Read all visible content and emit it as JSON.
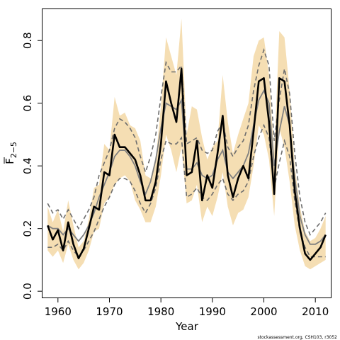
{
  "chart_data": {
    "type": "line",
    "xlabel": "Year",
    "ylabel": "F",
    "ylabel_subscript": "2−5",
    "xlim": [
      1957,
      2013
    ],
    "ylim": [
      -0.02,
      0.9
    ],
    "xticks": [
      1960,
      1970,
      1980,
      1990,
      2000,
      2010
    ],
    "yticks": [
      0.0,
      0.2,
      0.4,
      0.6,
      0.8
    ],
    "ytick_labels": [
      "0.0",
      "0.2",
      "0.4",
      "0.6",
      "0.8"
    ],
    "grid": false,
    "legend": "none",
    "x": [
      1958,
      1959,
      1960,
      1961,
      1962,
      1963,
      1964,
      1965,
      1966,
      1967,
      1968,
      1969,
      1970,
      1971,
      1972,
      1973,
      1974,
      1975,
      1976,
      1977,
      1978,
      1979,
      1980,
      1981,
      1982,
      1983,
      1984,
      1985,
      1986,
      1987,
      1988,
      1989,
      1990,
      1991,
      1992,
      1993,
      1994,
      1995,
      1996,
      1997,
      1998,
      1999,
      2000,
      2001,
      2002,
      2003,
      2004,
      2005,
      2006,
      2007,
      2008,
      2009,
      2010,
      2011,
      2012
    ],
    "series": [
      {
        "role": "band",
        "lower": [
          0.13,
          0.11,
          0.13,
          0.09,
          0.15,
          0.1,
          0.07,
          0.09,
          0.13,
          0.19,
          0.2,
          0.28,
          0.3,
          0.34,
          0.36,
          0.37,
          0.35,
          0.29,
          0.26,
          0.22,
          0.22,
          0.27,
          0.37,
          0.5,
          0.45,
          0.38,
          0.46,
          0.28,
          0.29,
          0.34,
          0.22,
          0.27,
          0.24,
          0.3,
          0.38,
          0.27,
          0.21,
          0.25,
          0.26,
          0.3,
          0.4,
          0.53,
          0.5,
          0.42,
          0.24,
          0.52,
          0.46,
          0.35,
          0.21,
          0.13,
          0.08,
          0.07,
          0.08,
          0.09,
          0.1
        ],
        "upper": [
          0.27,
          0.22,
          0.26,
          0.19,
          0.29,
          0.21,
          0.14,
          0.16,
          0.23,
          0.33,
          0.34,
          0.47,
          0.45,
          0.62,
          0.56,
          0.57,
          0.53,
          0.52,
          0.48,
          0.37,
          0.36,
          0.42,
          0.59,
          0.81,
          0.75,
          0.69,
          0.87,
          0.5,
          0.59,
          0.58,
          0.49,
          0.42,
          0.46,
          0.48,
          0.69,
          0.54,
          0.44,
          0.5,
          0.55,
          0.6,
          0.75,
          0.8,
          0.81,
          0.69,
          0.44,
          0.83,
          0.81,
          0.64,
          0.4,
          0.27,
          0.19,
          0.16,
          0.17,
          0.2,
          0.24
        ]
      },
      {
        "role": "dashed-upper",
        "values": [
          0.28,
          0.25,
          0.26,
          0.23,
          0.26,
          0.23,
          0.2,
          0.23,
          0.26,
          0.3,
          0.37,
          0.41,
          0.45,
          0.52,
          0.55,
          0.54,
          0.52,
          0.49,
          0.43,
          0.38,
          0.43,
          0.5,
          0.62,
          0.73,
          0.7,
          0.7,
          0.72,
          0.47,
          0.48,
          0.49,
          0.45,
          0.44,
          0.45,
          0.51,
          0.54,
          0.46,
          0.43,
          0.46,
          0.48,
          0.53,
          0.64,
          0.72,
          0.77,
          0.72,
          0.48,
          0.61,
          0.71,
          0.63,
          0.44,
          0.3,
          0.22,
          0.18,
          0.2,
          0.22,
          0.25
        ]
      },
      {
        "role": "dashed-lower",
        "values": [
          0.14,
          0.14,
          0.15,
          0.13,
          0.16,
          0.13,
          0.11,
          0.13,
          0.16,
          0.19,
          0.23,
          0.27,
          0.3,
          0.34,
          0.36,
          0.36,
          0.35,
          0.32,
          0.28,
          0.25,
          0.28,
          0.33,
          0.42,
          0.48,
          0.47,
          0.47,
          0.49,
          0.3,
          0.31,
          0.33,
          0.3,
          0.29,
          0.31,
          0.34,
          0.36,
          0.31,
          0.29,
          0.31,
          0.32,
          0.35,
          0.43,
          0.49,
          0.53,
          0.49,
          0.33,
          0.41,
          0.48,
          0.43,
          0.29,
          0.19,
          0.14,
          0.11,
          0.11,
          0.11,
          0.11
        ]
      },
      {
        "role": "grey-median",
        "values": [
          0.21,
          0.2,
          0.2,
          0.18,
          0.2,
          0.18,
          0.16,
          0.18,
          0.21,
          0.25,
          0.3,
          0.34,
          0.38,
          0.43,
          0.45,
          0.45,
          0.43,
          0.4,
          0.35,
          0.31,
          0.35,
          0.42,
          0.52,
          0.6,
          0.59,
          0.58,
          0.61,
          0.39,
          0.39,
          0.41,
          0.37,
          0.36,
          0.37,
          0.42,
          0.45,
          0.38,
          0.36,
          0.38,
          0.4,
          0.44,
          0.53,
          0.61,
          0.64,
          0.6,
          0.4,
          0.51,
          0.59,
          0.53,
          0.36,
          0.24,
          0.18,
          0.15,
          0.15,
          0.16,
          0.18
        ]
      },
      {
        "role": "black-estimate",
        "values": [
          0.21,
          0.165,
          0.195,
          0.13,
          0.22,
          0.15,
          0.105,
          0.135,
          0.2,
          0.27,
          0.26,
          0.38,
          0.37,
          0.5,
          0.46,
          0.46,
          0.44,
          0.42,
          0.37,
          0.29,
          0.29,
          0.35,
          0.47,
          0.67,
          0.6,
          0.54,
          0.71,
          0.37,
          0.38,
          0.48,
          0.29,
          0.37,
          0.33,
          0.44,
          0.56,
          0.37,
          0.3,
          0.36,
          0.4,
          0.36,
          0.51,
          0.67,
          0.68,
          0.54,
          0.31,
          0.68,
          0.67,
          0.53,
          0.32,
          0.2,
          0.12,
          0.1,
          0.12,
          0.14,
          0.18
        ]
      }
    ],
    "colors": {
      "band": "#f5deb3",
      "black": "#000000",
      "grey": "#808080",
      "dashed": "#6e6e6e"
    },
    "credit": "stockassessment.org, CSH103, r3052"
  }
}
